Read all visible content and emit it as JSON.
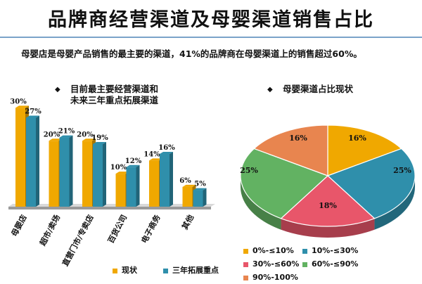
{
  "title": "品牌商经营渠道及母婴渠道销售占比",
  "subtitle": "母婴店是母婴产品销售的最主要的渠道，41%的品牌商在母婴渠道上的销售超过60%。",
  "bullet_glyph": "◆",
  "colors": {
    "现状": "#f0a800",
    "三年拓展重点": "#2f8fab"
  },
  "chart_data": [
    {
      "type": "bar",
      "title": "目前最主要经营渠道和未来三年重点拓展渠道",
      "title_lines": [
        "目前最主要经营渠道和",
        "未来三年重点拓展渠道"
      ],
      "categories": [
        "母婴店",
        "超市/卖场",
        "直营门市/专卖店",
        "百货公司",
        "电子商务",
        "其他"
      ],
      "series": [
        {
          "name": "现状",
          "values": [
            30,
            20,
            20,
            10,
            14,
            6
          ],
          "labels": [
            "30%",
            "20%",
            "20%",
            "10%",
            "14%",
            "6%"
          ]
        },
        {
          "name": "三年拓展重点",
          "values": [
            27,
            21,
            19,
            12,
            16,
            5
          ],
          "labels": [
            "27%",
            "21%",
            "19%",
            "12%",
            "16%",
            "5%"
          ]
        }
      ],
      "ylim": [
        0,
        32
      ],
      "grid": false,
      "legend": "bottom"
    },
    {
      "type": "pie",
      "title": "母婴渠道占比现状",
      "slices": [
        {
          "name": "0%-≤10%",
          "value": 16,
          "label": "16%",
          "color": "#f0a800"
        },
        {
          "name": "10%-≤30%",
          "value": 25,
          "label": "25%",
          "color": "#2f8fab"
        },
        {
          "name": "30%-≤60%",
          "value": 18,
          "label": "18%",
          "color": "#e8566a"
        },
        {
          "name": "60%-≤90%",
          "value": 25,
          "label": "25%",
          "color": "#62b262"
        },
        {
          "name": "90%-100%",
          "value": 16,
          "label": "16%",
          "color": "#e8854f"
        }
      ],
      "legend": "bottom"
    }
  ]
}
